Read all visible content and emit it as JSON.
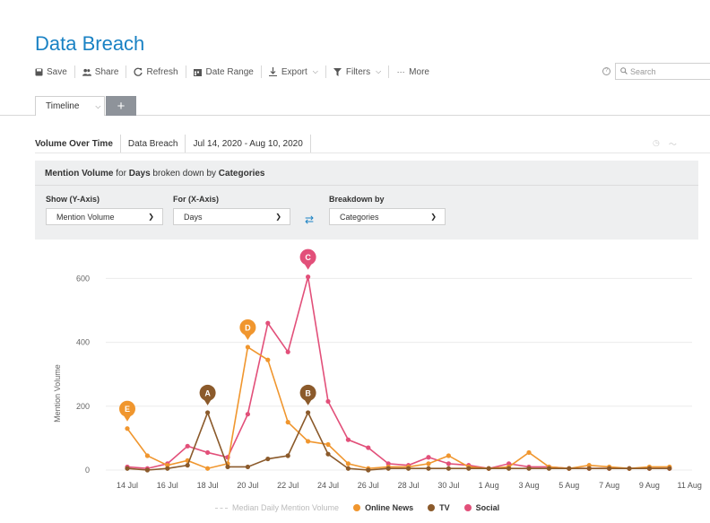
{
  "page": {
    "title": "Data Breach"
  },
  "toolbar": {
    "items": [
      {
        "label": "Save",
        "icon": "save-icon",
        "dropdown": false
      },
      {
        "label": "Share",
        "icon": "share-icon",
        "dropdown": false
      },
      {
        "label": "Refresh",
        "icon": "refresh-icon",
        "dropdown": false
      },
      {
        "label": "Date Range",
        "icon": "calendar-icon",
        "dropdown": false
      },
      {
        "label": "Export",
        "icon": "export-icon",
        "dropdown": true
      },
      {
        "label": "Filters",
        "icon": "filter-icon",
        "dropdown": true
      },
      {
        "label": "More",
        "icon": "more-icon",
        "dropdown": false
      }
    ],
    "help_glyph": "?"
  },
  "search": {
    "placeholder": "Search"
  },
  "tabs": {
    "active_label": "Timeline",
    "add_glyph": "+"
  },
  "subheader": {
    "title": "Volume Over Time",
    "query": "Data Breach",
    "date_range": "Jul 14, 2020 - Aug 10, 2020"
  },
  "panel": {
    "heading_parts": [
      "Mention Volume",
      " for ",
      "Days",
      " broken down by ",
      "Categories"
    ],
    "y_label": "Show (Y-Axis)",
    "y_value": "Mention Volume",
    "x_label": "For (X-Axis)",
    "x_value": "Days",
    "breakdown_label": "Breakdown by",
    "breakdown_value": "Categories"
  },
  "chart_data": {
    "type": "line",
    "ylabel": "Mention Volume",
    "ylim": [
      0,
      640
    ],
    "yticks": [
      0,
      200,
      400,
      600
    ],
    "x": [
      "Jul 14",
      "Jul 15",
      "Jul 16",
      "Jul 17",
      "Jul 18",
      "Jul 19",
      "Jul 20",
      "Jul 21",
      "Jul 22",
      "Jul 23",
      "Jul 24",
      "Jul 25",
      "Jul 26",
      "Jul 27",
      "Jul 28",
      "Jul 29",
      "Jul 30",
      "Jul 31",
      "Aug 1",
      "Aug 2",
      "Aug 3",
      "Aug 4",
      "Aug 5",
      "Aug 6",
      "Aug 7",
      "Aug 8",
      "Aug 9",
      "Aug 10"
    ],
    "xtick_labels": [
      "14 Jul",
      "16 Jul",
      "18 Jul",
      "20 Jul",
      "22 Jul",
      "24 Jul",
      "26 Jul",
      "28 Jul",
      "30 Jul",
      "1 Aug",
      "3 Aug",
      "5 Aug",
      "7 Aug",
      "9 Aug",
      "11 Aug"
    ],
    "series": [
      {
        "name": "Online News",
        "color": "#f0962e",
        "values": [
          130,
          45,
          15,
          30,
          5,
          20,
          385,
          345,
          150,
          90,
          80,
          20,
          5,
          10,
          10,
          20,
          45,
          10,
          5,
          10,
          55,
          10,
          5,
          15,
          10,
          5,
          10,
          10
        ]
      },
      {
        "name": "TV",
        "color": "#8b5a2b",
        "values": [
          5,
          0,
          5,
          15,
          180,
          10,
          10,
          35,
          45,
          180,
          50,
          5,
          0,
          5,
          5,
          5,
          5,
          5,
          5,
          5,
          5,
          5,
          5,
          5,
          5,
          5,
          5,
          5
        ]
      },
      {
        "name": "Social",
        "color": "#e2507a",
        "values": [
          10,
          5,
          20,
          75,
          55,
          40,
          175,
          460,
          370,
          605,
          215,
          95,
          70,
          20,
          15,
          40,
          20,
          15,
          5,
          20,
          10,
          10,
          5,
          5,
          5,
          5,
          5,
          5
        ]
      }
    ],
    "annotations": [
      {
        "letter": "E",
        "series": "Online News",
        "x": "Jul 14"
      },
      {
        "letter": "A",
        "series": "TV",
        "x": "Jul 18"
      },
      {
        "letter": "D",
        "series": "Online News",
        "x": "Jul 20"
      },
      {
        "letter": "C",
        "series": "Social",
        "x": "Jul 23"
      },
      {
        "letter": "B",
        "series": "TV",
        "x": "Jul 23"
      }
    ],
    "legend": {
      "median_label": "Median Daily Mention Volume",
      "placement": "bottom"
    }
  }
}
